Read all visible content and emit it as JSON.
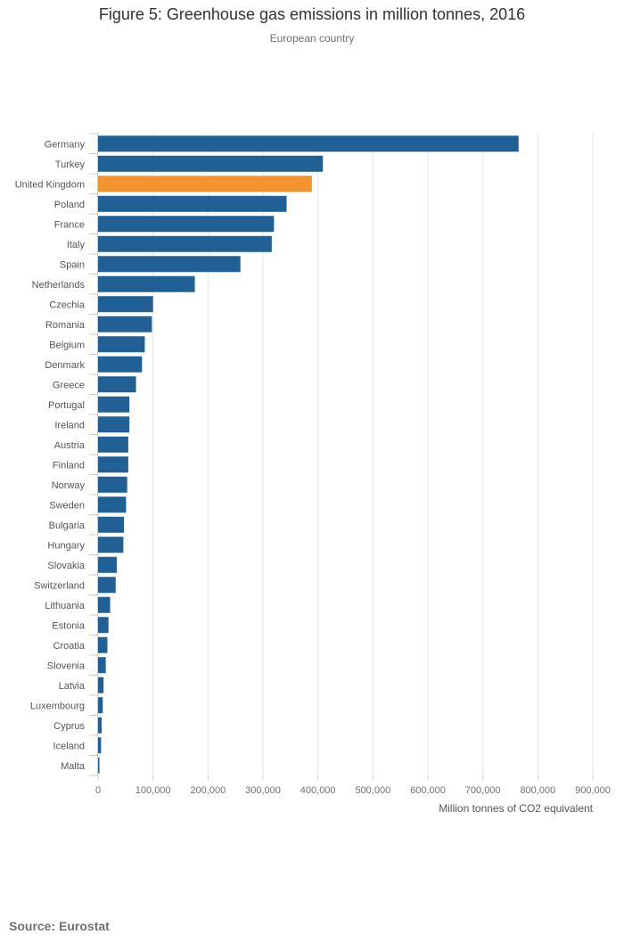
{
  "chart_data": {
    "type": "bar",
    "orientation": "horizontal",
    "title": "Figure 5: Greenhouse gas emissions in million tonnes, 2016",
    "subtitle": "European country",
    "xlabel": "Million tonnes of CO2 equivalent",
    "ylabel": "European country",
    "xlim": [
      0,
      900000
    ],
    "xticks": [
      0,
      100000,
      200000,
      300000,
      400000,
      500000,
      600000,
      700000,
      800000,
      900000
    ],
    "xtick_labels": [
      "0",
      "100,000",
      "200,000",
      "300,000",
      "400,000",
      "500,000",
      "600,000",
      "700,000",
      "800,000",
      "900,000"
    ],
    "grid": true,
    "categories": [
      "Germany",
      "Turkey",
      "United Kingdom",
      "Poland",
      "France",
      "Italy",
      "Spain",
      "Netherlands",
      "Czechia",
      "Romania",
      "Belgium",
      "Denmark",
      "Greece",
      "Portugal",
      "Ireland",
      "Austria",
      "Finland",
      "Norway",
      "Sweden",
      "Bulgaria",
      "Hungary",
      "Slovakia",
      "Switzerland",
      "Lithuania",
      "Estonia",
      "Croatia",
      "Slovenia",
      "Latvia",
      "Luxembourg",
      "Cyprus",
      "Iceland",
      "Malta"
    ],
    "values": [
      765000,
      409000,
      389000,
      343000,
      320000,
      316000,
      259000,
      176000,
      100000,
      98000,
      85000,
      80000,
      69000,
      57000,
      57000,
      55000,
      55000,
      53000,
      51000,
      47000,
      46000,
      34000,
      32000,
      22000,
      19000,
      17000,
      14000,
      10000,
      8500,
      6500,
      5500,
      2500
    ],
    "bar_color": "#206095",
    "highlight_category": "United Kingdom",
    "highlight_color": "#F39431"
  },
  "source": "Source: Eurostat"
}
